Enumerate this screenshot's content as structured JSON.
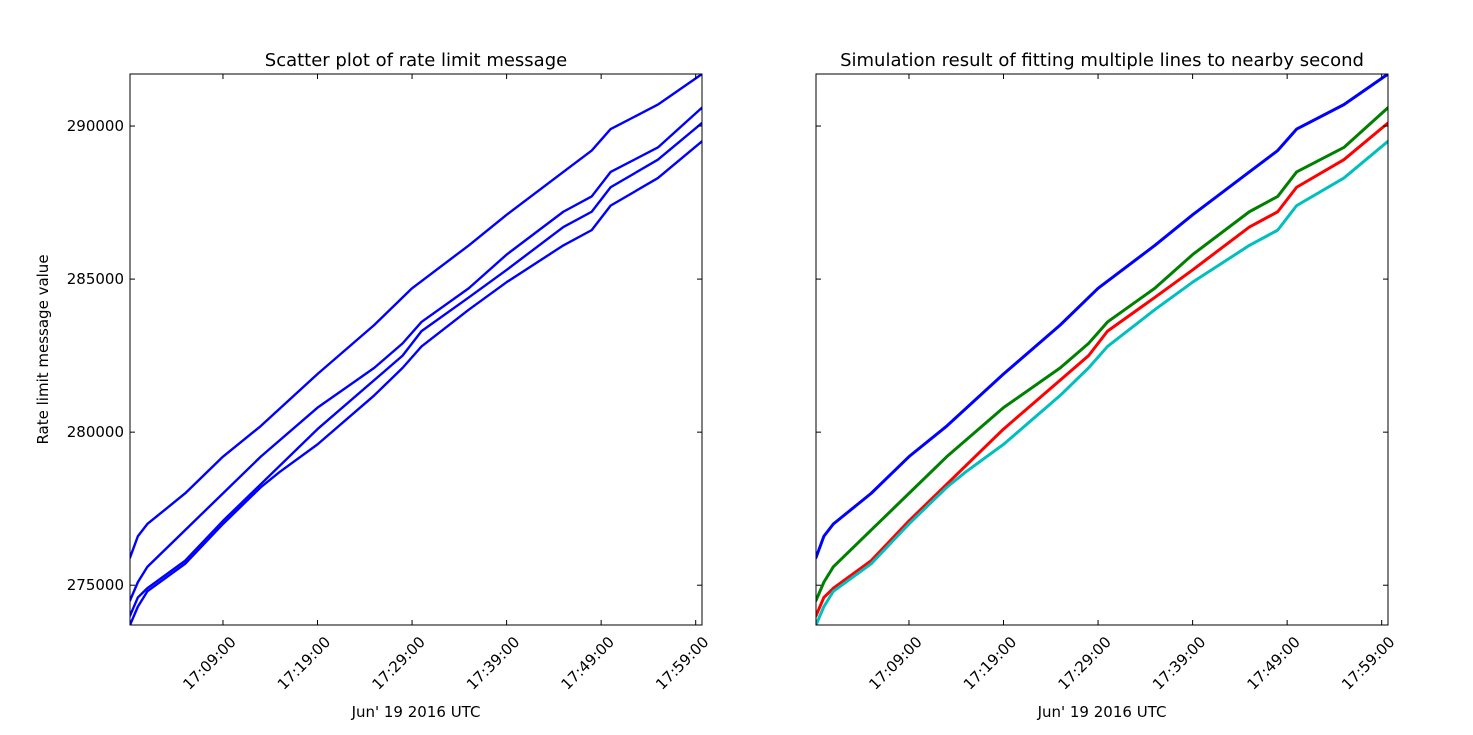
{
  "chart_data": [
    {
      "type": "line",
      "title": "Scatter plot of rate limit message",
      "xlabel": "Jun' 19 2016 UTC",
      "ylabel": "Rate limit message value",
      "xlim": [
        "16:59:10",
        "17:59:40"
      ],
      "ylim": [
        273700,
        291700
      ],
      "x_ticks": [
        "17:09:00",
        "17:19:00",
        "17:29:00",
        "17:39:00",
        "17:49:00",
        "17:59:00"
      ],
      "y_ticks": [
        275000,
        280000,
        285000,
        290000
      ],
      "show_y_tick_labels": true,
      "series": [
        {
          "color": "#0000ff",
          "points": [
            [
              "16:59:10",
              275900
            ],
            [
              "17:00:00",
              276600
            ],
            [
              "17:01:00",
              277000
            ],
            [
              "17:05:00",
              278000
            ],
            [
              "17:09:00",
              279200
            ],
            [
              "17:13:00",
              280200
            ],
            [
              "17:19:00",
              281900
            ],
            [
              "17:25:00",
              283500
            ],
            [
              "17:29:00",
              284700
            ],
            [
              "17:35:00",
              286100
            ],
            [
              "17:39:00",
              287100
            ],
            [
              "17:45:00",
              288500
            ],
            [
              "17:48:00",
              289200
            ],
            [
              "17:50:00",
              289900
            ],
            [
              "17:55:00",
              290700
            ],
            [
              "17:59:40",
              291700
            ]
          ]
        },
        {
          "color": "#0000ff",
          "points": [
            [
              "16:59:10",
              274500
            ],
            [
              "17:00:00",
              275100
            ],
            [
              "17:01:00",
              275600
            ],
            [
              "17:05:00",
              276800
            ],
            [
              "17:09:00",
              278000
            ],
            [
              "17:13:00",
              279200
            ],
            [
              "17:19:00",
              280800
            ],
            [
              "17:25:00",
              282100
            ],
            [
              "17:28:00",
              282900
            ],
            [
              "17:30:00",
              283600
            ],
            [
              "17:35:00",
              284700
            ],
            [
              "17:39:00",
              285800
            ],
            [
              "17:45:00",
              287200
            ],
            [
              "17:48:00",
              287700
            ],
            [
              "17:50:00",
              288500
            ],
            [
              "17:55:00",
              289300
            ],
            [
              "17:59:40",
              290600
            ]
          ]
        },
        {
          "color": "#0000ff",
          "points": [
            [
              "16:59:10",
              274000
            ],
            [
              "17:00:00",
              274600
            ],
            [
              "17:01:00",
              274900
            ],
            [
              "17:05:00",
              275800
            ],
            [
              "17:09:00",
              277100
            ],
            [
              "17:13:00",
              278300
            ],
            [
              "17:19:00",
              280100
            ],
            [
              "17:25:00",
              281700
            ],
            [
              "17:28:00",
              282500
            ],
            [
              "17:30:00",
              283300
            ],
            [
              "17:35:00",
              284400
            ],
            [
              "17:39:00",
              285300
            ],
            [
              "17:45:00",
              286700
            ],
            [
              "17:48:00",
              287200
            ],
            [
              "17:50:00",
              288000
            ],
            [
              "17:55:00",
              288900
            ],
            [
              "17:59:40",
              290100
            ]
          ]
        },
        {
          "color": "#0000ff",
          "points": [
            [
              "16:59:10",
              273700
            ],
            [
              "17:00:00",
              274300
            ],
            [
              "17:01:00",
              274800
            ],
            [
              "17:05:00",
              275700
            ],
            [
              "17:09:00",
              277000
            ],
            [
              "17:13:00",
              278200
            ],
            [
              "17:15:00",
              278700
            ],
            [
              "17:19:00",
              279600
            ],
            [
              "17:25:00",
              281200
            ],
            [
              "17:28:00",
              282100
            ],
            [
              "17:30:00",
              282800
            ],
            [
              "17:35:00",
              284000
            ],
            [
              "17:39:00",
              284900
            ],
            [
              "17:45:00",
              286100
            ],
            [
              "17:48:00",
              286600
            ],
            [
              "17:50:00",
              287400
            ],
            [
              "17:55:00",
              288300
            ],
            [
              "17:59:40",
              289500
            ]
          ]
        }
      ]
    },
    {
      "type": "line",
      "title": "Simulation result of fitting multiple lines to nearby second",
      "xlabel": "Jun' 19 2016 UTC",
      "ylabel": "",
      "xlim": [
        "16:59:10",
        "17:59:40"
      ],
      "ylim": [
        273700,
        291700
      ],
      "x_ticks": [
        "17:09:00",
        "17:19:00",
        "17:29:00",
        "17:39:00",
        "17:49:00",
        "17:59:00"
      ],
      "y_ticks": [
        275000,
        280000,
        285000,
        290000
      ],
      "show_y_tick_labels": false,
      "series": [
        {
          "color": "#0000ff",
          "points": [
            [
              "16:59:10",
              275900
            ],
            [
              "17:00:00",
              276600
            ],
            [
              "17:01:00",
              277000
            ],
            [
              "17:05:00",
              278000
            ],
            [
              "17:09:00",
              279200
            ],
            [
              "17:13:00",
              280200
            ],
            [
              "17:19:00",
              281900
            ],
            [
              "17:25:00",
              283500
            ],
            [
              "17:29:00",
              284700
            ],
            [
              "17:35:00",
              286100
            ],
            [
              "17:39:00",
              287100
            ],
            [
              "17:45:00",
              288500
            ],
            [
              "17:48:00",
              289200
            ],
            [
              "17:50:00",
              289900
            ],
            [
              "17:55:00",
              290700
            ],
            [
              "17:59:40",
              291700
            ]
          ]
        },
        {
          "color": "#008000",
          "points": [
            [
              "16:59:10",
              274500
            ],
            [
              "17:00:00",
              275100
            ],
            [
              "17:01:00",
              275600
            ],
            [
              "17:05:00",
              276800
            ],
            [
              "17:09:00",
              278000
            ],
            [
              "17:13:00",
              279200
            ],
            [
              "17:19:00",
              280800
            ],
            [
              "17:25:00",
              282100
            ],
            [
              "17:28:00",
              282900
            ],
            [
              "17:30:00",
              283600
            ],
            [
              "17:35:00",
              284700
            ],
            [
              "17:39:00",
              285800
            ],
            [
              "17:45:00",
              287200
            ],
            [
              "17:48:00",
              287700
            ],
            [
              "17:50:00",
              288500
            ],
            [
              "17:55:00",
              289300
            ],
            [
              "17:59:40",
              290600
            ]
          ]
        },
        {
          "color": "#ff0000",
          "points": [
            [
              "16:59:10",
              274000
            ],
            [
              "17:00:00",
              274600
            ],
            [
              "17:01:00",
              274900
            ],
            [
              "17:05:00",
              275800
            ],
            [
              "17:09:00",
              277100
            ],
            [
              "17:13:00",
              278300
            ],
            [
              "17:19:00",
              280100
            ],
            [
              "17:25:00",
              281700
            ],
            [
              "17:28:00",
              282500
            ],
            [
              "17:30:00",
              283300
            ],
            [
              "17:35:00",
              284400
            ],
            [
              "17:39:00",
              285300
            ],
            [
              "17:45:00",
              286700
            ],
            [
              "17:48:00",
              287200
            ],
            [
              "17:50:00",
              288000
            ],
            [
              "17:55:00",
              288900
            ],
            [
              "17:59:40",
              290100
            ]
          ]
        },
        {
          "color": "#00bfbf",
          "points": [
            [
              "16:59:10",
              273700
            ],
            [
              "17:00:00",
              274300
            ],
            [
              "17:01:00",
              274800
            ],
            [
              "17:05:00",
              275700
            ],
            [
              "17:09:00",
              277000
            ],
            [
              "17:13:00",
              278200
            ],
            [
              "17:15:00",
              278700
            ],
            [
              "17:19:00",
              279600
            ],
            [
              "17:25:00",
              281200
            ],
            [
              "17:28:00",
              282100
            ],
            [
              "17:30:00",
              282800
            ],
            [
              "17:35:00",
              284000
            ],
            [
              "17:39:00",
              284900
            ],
            [
              "17:45:00",
              286100
            ],
            [
              "17:48:00",
              286600
            ],
            [
              "17:50:00",
              287400
            ],
            [
              "17:55:00",
              288300
            ],
            [
              "17:59:40",
              289500
            ]
          ]
        }
      ]
    }
  ]
}
